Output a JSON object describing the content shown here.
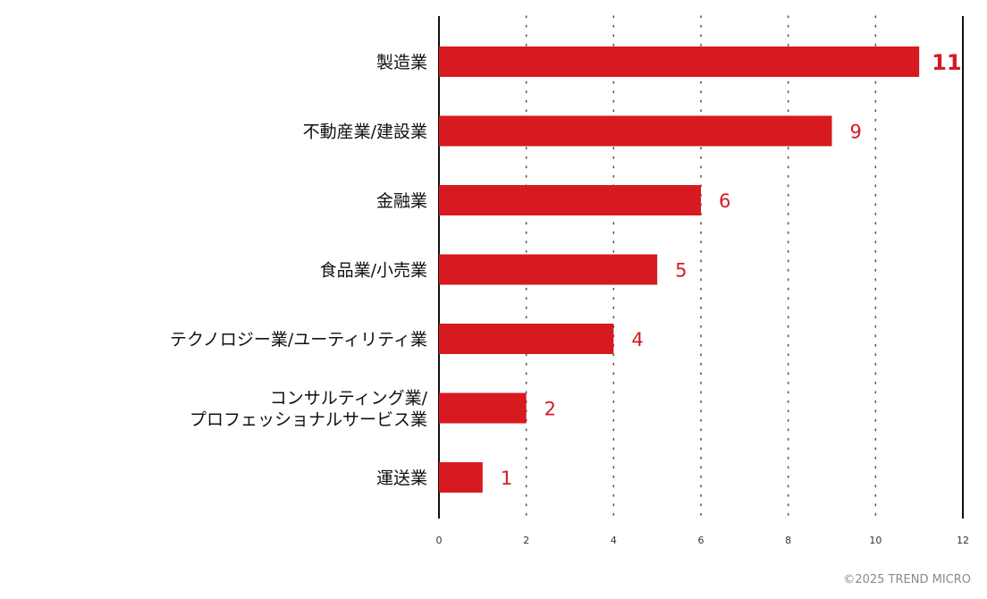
{
  "colors": {
    "bar": "#d71920",
    "axis": "#111111",
    "grid": "#555555",
    "copyright": "#8a8a8a"
  },
  "chart_data": {
    "type": "bar",
    "orientation": "horizontal",
    "categories": [
      [
        "製造業"
      ],
      [
        "不動産業/建設業"
      ],
      [
        "金融業"
      ],
      [
        "食品業/小売業"
      ],
      [
        "テクノロジー業/ユーティリティ業"
      ],
      [
        "コンサルティング業/",
        "プロフェッショナルサービス業"
      ],
      [
        "運送業"
      ]
    ],
    "values": [
      11,
      9,
      6,
      5,
      4,
      2,
      1
    ],
    "value_labels": [
      "11",
      "9",
      "6",
      "5",
      "4",
      "2",
      "1"
    ],
    "xlim": [
      0,
      12
    ],
    "xticks": [
      0,
      2,
      4,
      6,
      8,
      10,
      12
    ],
    "grid": "vertical dotted",
    "title": "",
    "xlabel": "",
    "ylabel": ""
  },
  "footer": {
    "copyright": "©2025 TREND MICRO"
  }
}
